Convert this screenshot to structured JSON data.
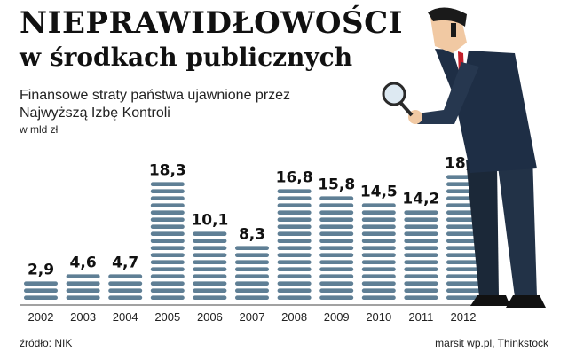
{
  "header": {
    "title_line1": "NIEPRAWIDŁOWOŚCI",
    "title_line2": "w środkach publicznych",
    "subtitle_line1": "Finansowe straty państwa ujawnione przez",
    "subtitle_line2": "Najwyższą Izbę Kontroli",
    "unit": "w mld zł"
  },
  "footer": {
    "source": "źródło: NIK",
    "credit": "marsit wp.pl, Thinkstock"
  },
  "colors": {
    "bar": "#5f7f95",
    "bar_highlight": "#8aa3b4",
    "axis": "#444444",
    "text": "#111111"
  },
  "chart_data": {
    "type": "bar",
    "categories": [
      "2002",
      "2003",
      "2004",
      "2005",
      "2006",
      "2007",
      "2008",
      "2009",
      "2010",
      "2011",
      "2012"
    ],
    "values": [
      2.9,
      4.6,
      4.7,
      18.3,
      10.1,
      8.3,
      16.8,
      15.8,
      14.5,
      14.2,
      18.7
    ],
    "value_labels": [
      "2,9",
      "4,6",
      "4,7",
      "18,3",
      "10,1",
      "8,3",
      "16,8",
      "15,8",
      "14,5",
      "14,2",
      "18,7"
    ],
    "title": "NIEPRAWIDŁOWOŚCI w środkach publicznych",
    "ylabel": "w mld zł",
    "ylim": [
      0,
      19
    ],
    "grid": false,
    "legend": "none"
  }
}
